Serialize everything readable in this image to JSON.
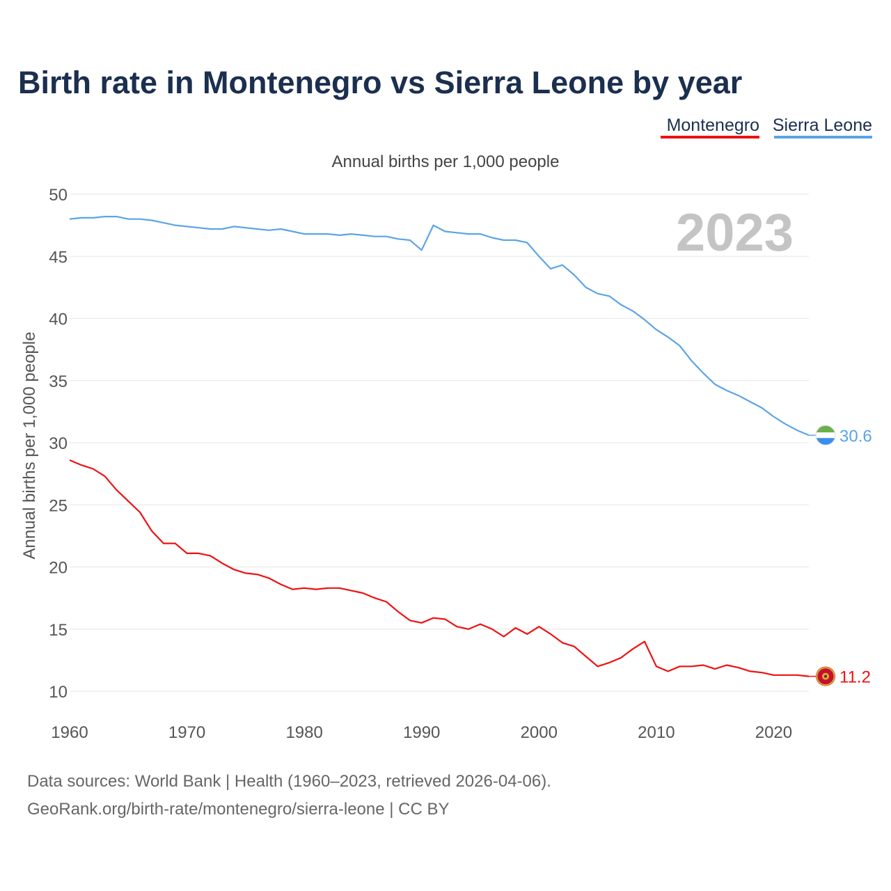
{
  "chart_data": {
    "type": "line",
    "title": "Birth rate in Montenegro vs Sierra Leone by year",
    "subtitle": "Annual births per 1,000 people",
    "ylabel": "Annual births per 1,000 people",
    "xlabel": "",
    "xlim": [
      1960,
      2023
    ],
    "ylim": [
      10,
      50
    ],
    "yticks": [
      10,
      15,
      20,
      25,
      30,
      35,
      40,
      45,
      50
    ],
    "xticks": [
      1960,
      1970,
      1980,
      1990,
      2000,
      2010,
      2020
    ],
    "grid": true,
    "legend_position": "top-right",
    "year_label": "2023",
    "x": [
      1960,
      1961,
      1962,
      1963,
      1964,
      1965,
      1966,
      1967,
      1968,
      1969,
      1970,
      1971,
      1972,
      1973,
      1974,
      1975,
      1976,
      1977,
      1978,
      1979,
      1980,
      1981,
      1982,
      1983,
      1984,
      1985,
      1986,
      1987,
      1988,
      1989,
      1990,
      1991,
      1992,
      1993,
      1994,
      1995,
      1996,
      1997,
      1998,
      1999,
      2000,
      2001,
      2002,
      2003,
      2004,
      2005,
      2006,
      2007,
      2008,
      2009,
      2010,
      2011,
      2012,
      2013,
      2014,
      2015,
      2016,
      2017,
      2018,
      2019,
      2020,
      2021,
      2022,
      2023
    ],
    "series": [
      {
        "name": "Montenegro",
        "color": "#ee1111",
        "end_label": "11.2",
        "values": [
          28.6,
          28.2,
          27.9,
          27.3,
          26.2,
          25.3,
          24.4,
          22.9,
          21.9,
          21.9,
          21.1,
          21.1,
          20.9,
          20.3,
          19.8,
          19.5,
          19.4,
          19.1,
          18.6,
          18.2,
          18.3,
          18.2,
          18.3,
          18.3,
          18.1,
          17.9,
          17.5,
          17.2,
          16.4,
          15.7,
          15.5,
          15.9,
          15.8,
          15.2,
          15.0,
          15.4,
          15.0,
          14.4,
          15.1,
          14.6,
          15.2,
          14.6,
          13.9,
          13.6,
          12.8,
          12.0,
          12.3,
          12.7,
          13.4,
          14.0,
          12.0,
          11.6,
          12.0,
          12.0,
          12.1,
          11.8,
          12.1,
          11.9,
          11.6,
          11.5,
          11.3,
          11.3,
          11.3,
          11.2
        ]
      },
      {
        "name": "Sierra Leone",
        "color": "#5ba4e6",
        "end_label": "30.6",
        "values": [
          48.0,
          48.1,
          48.1,
          48.2,
          48.2,
          48.0,
          48.0,
          47.9,
          47.7,
          47.5,
          47.4,
          47.3,
          47.2,
          47.2,
          47.4,
          47.3,
          47.2,
          47.1,
          47.2,
          47.0,
          46.8,
          46.8,
          46.8,
          46.7,
          46.8,
          46.7,
          46.6,
          46.6,
          46.4,
          46.3,
          45.5,
          47.5,
          47.0,
          46.9,
          46.8,
          46.8,
          46.5,
          46.3,
          46.3,
          46.1,
          45.0,
          44.0,
          44.3,
          43.5,
          42.5,
          42.0,
          41.8,
          41.1,
          40.6,
          39.9,
          39.1,
          38.5,
          37.8,
          36.6,
          35.6,
          34.7,
          34.2,
          33.8,
          33.3,
          32.8,
          32.1,
          31.5,
          31.0,
          30.6
        ]
      }
    ]
  },
  "footer": {
    "sources": "Data sources: World Bank | Health (1960–2023, retrieved 2026-04-06).",
    "link": "GeoRank.org/birth-rate/montenegro/sierra-leone | CC BY"
  }
}
